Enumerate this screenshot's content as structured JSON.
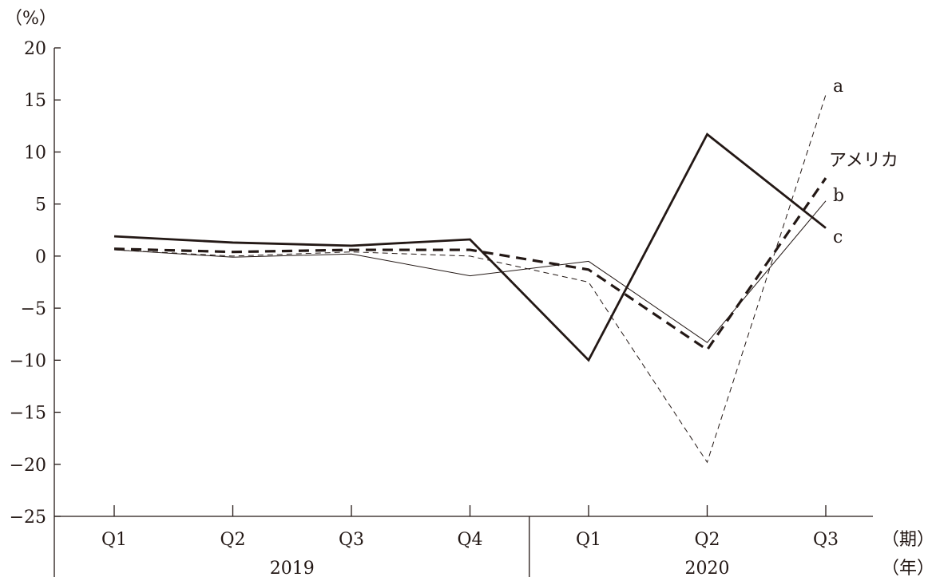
{
  "chart_data": {
    "type": "line",
    "y_unit_label": "（%）",
    "x_period_unit_label": "（期）",
    "x_year_unit_label": "（年）",
    "ylim": [
      -25,
      20
    ],
    "yticks": [
      20,
      15,
      10,
      5,
      0,
      -5,
      -10,
      -15,
      -20,
      -25
    ],
    "ytick_labels": [
      "20",
      "15",
      "10",
      "5",
      "0",
      "−5",
      "−10",
      "−15",
      "−20",
      "−25"
    ],
    "categories": [
      "Q1",
      "Q2",
      "Q3",
      "Q4",
      "Q1",
      "Q2",
      "Q3"
    ],
    "year_groups": [
      {
        "label": "2019",
        "span": 4
      },
      {
        "label": "2020",
        "span": 3
      }
    ],
    "grid": false,
    "series": [
      {
        "name": "アメリカ",
        "style": "thick-dashed",
        "color": "#231815",
        "values": [
          0.7,
          0.4,
          0.6,
          0.6,
          -1.3,
          -9.0,
          7.5
        ]
      },
      {
        "name": "a",
        "style": "thin-dashed",
        "color": "#231815",
        "values": [
          0.6,
          0.0,
          0.4,
          0.0,
          -2.5,
          -19.8,
          15.5
        ]
      },
      {
        "name": "b",
        "style": "thin-solid",
        "color": "#231815",
        "values": [
          0.6,
          -0.1,
          0.2,
          -1.9,
          -0.5,
          -8.3,
          5.3
        ]
      },
      {
        "name": "c",
        "style": "thick-solid",
        "color": "#231815",
        "values": [
          1.9,
          1.3,
          1.0,
          1.6,
          -10.0,
          11.7,
          2.7
        ]
      }
    ]
  }
}
